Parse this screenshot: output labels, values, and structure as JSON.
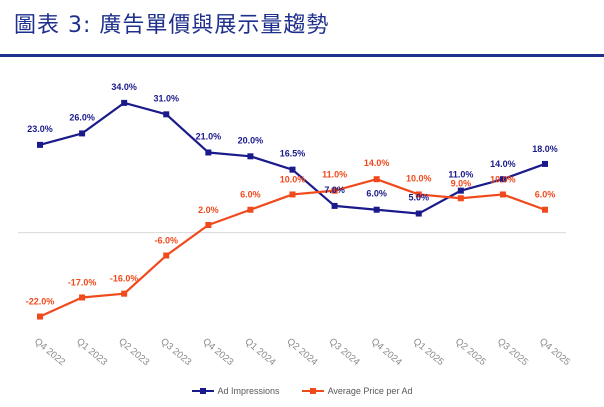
{
  "figure": {
    "title": "圖表 3:  廣告單價與展示量趨勢"
  },
  "chart_data": {
    "type": "line",
    "title": "",
    "xlabel": "",
    "ylabel": "",
    "categories": [
      "Q4 2022",
      "Q1 2023",
      "Q2 2023",
      "Q3 2023",
      "Q4 2023",
      "Q1 2024",
      "Q2 2024",
      "Q3 2024",
      "Q4 2024",
      "Q1 2025",
      "Q2 2025",
      "Q3 2025",
      "Q4 2025"
    ],
    "ylim": [
      -25,
      40
    ],
    "grid": false,
    "legend_position": "bottom",
    "series": [
      {
        "name": "Ad Impressions",
        "color": "#1a1a8c",
        "values": [
          23.0,
          26.0,
          34.0,
          31.0,
          21.0,
          20.0,
          16.5,
          7.0,
          6.0,
          5.0,
          11.0,
          14.0,
          18.0
        ],
        "labels": [
          "23.0%",
          "26.0%",
          "34.0%",
          "31.0%",
          "21.0%",
          "20.0%",
          "16.5%",
          "7.0%",
          "6.0%",
          "5.0%",
          "11.0%",
          "14.0%",
          "18.0%"
        ]
      },
      {
        "name": "Average Price per Ad",
        "color": "#f04a1c",
        "values": [
          -22.0,
          -17.0,
          -16.0,
          -6.0,
          2.0,
          6.0,
          10.0,
          11.0,
          14.0,
          10.0,
          9.0,
          10.0,
          6.0
        ],
        "labels": [
          "-22.0%",
          "-17.0%",
          "-16.0%",
          "-6.0%",
          "2.0%",
          "6.0%",
          "10.0%",
          "11.0%",
          "14.0%",
          "10.0%",
          "9.0%",
          "10.0%",
          "6.0%"
        ]
      }
    ]
  }
}
